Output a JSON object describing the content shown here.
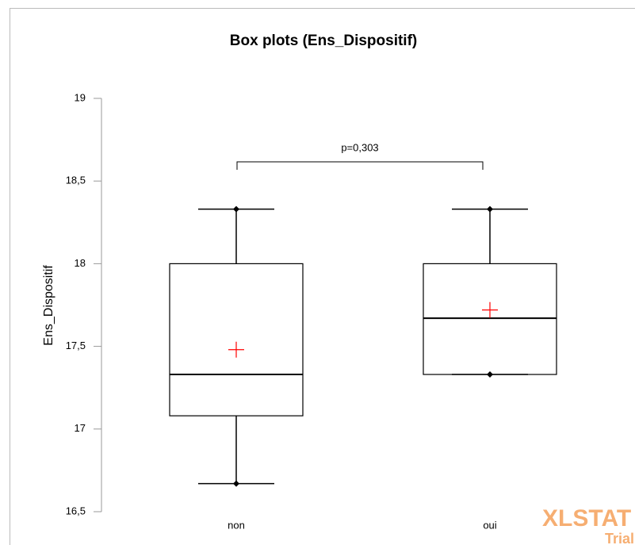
{
  "chart_data": {
    "type": "box",
    "title": "Box plots (Ens_Dispositif)",
    "y_label": "Ens_Dispositif",
    "categories": [
      "non",
      "oui"
    ],
    "min": [
      16.67,
      17.33
    ],
    "q1": [
      17.08,
      17.33
    ],
    "median": [
      17.33,
      17.67
    ],
    "q3": [
      18,
      18
    ],
    "max": [
      18.33,
      18.33
    ],
    "mean": [
      17.48,
      17.72
    ],
    "box_color": "#000000",
    "mean_color": "#ff0000",
    "ylim": [
      16.5,
      19
    ],
    "yticks": [
      {
        "value": 16.5,
        "label": "16,5"
      },
      17,
      {
        "value": 17.5,
        "label": "17,5"
      },
      18,
      {
        "value": 18.5,
        "label": "18,5"
      },
      19
    ],
    "annotation": "p=0,303",
    "watermark": [
      "XLSTAT",
      "Trial"
    ]
  }
}
